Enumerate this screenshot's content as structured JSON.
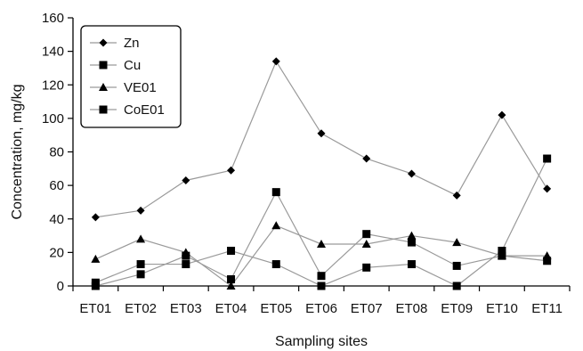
{
  "chart_data": {
    "type": "line",
    "xlabel": "Sampling sites",
    "ylabel": "Concentration, mg/kg",
    "ylim": [
      0,
      160
    ],
    "yticks": [
      0,
      20,
      40,
      60,
      80,
      100,
      120,
      140,
      160
    ],
    "grid": false,
    "legend_position": "top-left",
    "categories": [
      "ET01",
      "ET02",
      "ET03",
      "ET04",
      "ET05",
      "ET06",
      "ET07",
      "ET08",
      "ET09",
      "ET10",
      "ET11"
    ],
    "series": [
      {
        "name": "Zn",
        "marker": "diamond",
        "values": [
          41,
          45,
          63,
          69,
          134,
          91,
          76,
          67,
          54,
          102,
          58
        ]
      },
      {
        "name": "Cu",
        "marker": "square",
        "values": [
          2,
          13,
          13,
          21,
          13,
          0,
          11,
          13,
          0,
          21,
          76
        ]
      },
      {
        "name": "VE01",
        "marker": "triangle",
        "values": [
          16,
          28,
          20,
          0,
          36,
          25,
          25,
          30,
          26,
          18,
          18
        ]
      },
      {
        "name": "CoE01",
        "marker": "square",
        "values": [
          0,
          7,
          18,
          4,
          56,
          6,
          31,
          26,
          12,
          18,
          15
        ]
      }
    ],
    "colors": {
      "line": "#9a9a9a",
      "marker": "#000000",
      "axis": "#000000"
    }
  }
}
